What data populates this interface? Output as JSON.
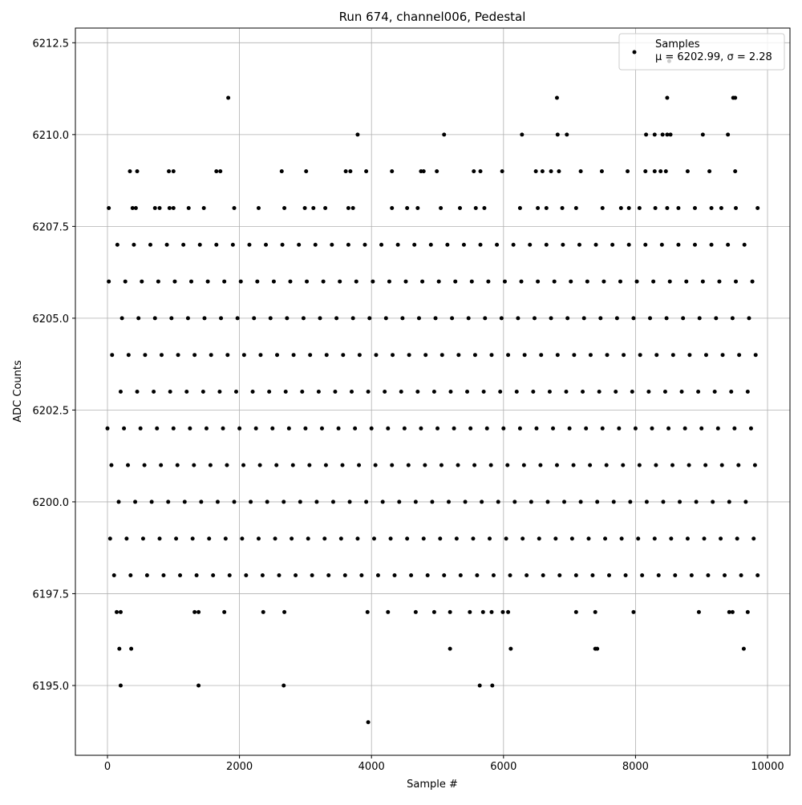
{
  "chart_data": {
    "type": "scatter",
    "title": "Run 674, channel006, Pedestal",
    "x_label": "Sample #",
    "y_label": "ADC Counts",
    "legend_note": "μ = 6202.99, σ = 2.28",
    "legend_loc": "upper right",
    "grid": true,
    "xlim": [
      -486,
      10340
    ],
    "ylim": [
      6193.1,
      6212.9
    ],
    "xticks": [
      0,
      2000,
      4000,
      6000,
      8000,
      10000
    ],
    "yticks": [
      {
        "value": 6195,
        "label": "6195.0"
      },
      {
        "value": 6197.5,
        "label": "6197.5"
      },
      {
        "value": 6200,
        "label": "6200.0"
      },
      {
        "value": 6202.5,
        "label": "6202.5"
      },
      {
        "value": 6205,
        "label": "6205.0"
      },
      {
        "value": 6207.5,
        "label": "6207.5"
      },
      {
        "value": 6210,
        "label": "6210.0"
      },
      {
        "value": 6212.5,
        "label": "6212.5"
      }
    ],
    "x": [
      100,
      350,
      600,
      850,
      1100,
      1350,
      1600,
      1850,
      2100,
      2350,
      2600,
      2850,
      3100,
      3350,
      3600,
      3850,
      4100,
      4350,
      4600,
      4850,
      5100,
      5350,
      5600,
      5850,
      6100,
      6350,
      6600,
      6850,
      7100,
      7350,
      7600,
      7850,
      8100,
      8350,
      8600,
      8850,
      9100,
      9350,
      9600,
      9850,
      40,
      290,
      540,
      790,
      1040,
      1290,
      1540,
      1790,
      2040,
      2290,
      2540,
      2790,
      3040,
      3290,
      3540,
      3790,
      4040,
      4290,
      4540,
      4790,
      5040,
      5290,
      5540,
      5790,
      6040,
      6290,
      6540,
      6790,
      7040,
      7290,
      7540,
      7790,
      8040,
      8290,
      8540,
      8790,
      9040,
      9290,
      9540,
      9790,
      170,
      420,
      670,
      920,
      1170,
      1420,
      1670,
      1920,
      2170,
      2420,
      2670,
      2920,
      3170,
      3420,
      3670,
      3920,
      4170,
      4420,
      4670,
      4920,
      5170,
      5420,
      5670,
      5920,
      6170,
      6420,
      6670,
      6920,
      7170,
      7420,
      7670,
      7920,
      8170,
      8420,
      8670,
      8920,
      9170,
      9420,
      9670,
      60,
      310,
      560,
      810,
      1060,
      1310,
      1560,
      1810,
      2060,
      2310,
      2560,
      2810,
      3060,
      3310,
      3560,
      3810,
      4060,
      4310,
      4560,
      4810,
      5060,
      5310,
      5560,
      5810,
      6060,
      6310,
      6560,
      6810,
      7060,
      7310,
      7560,
      7810,
      8060,
      8310,
      8560,
      8810,
      9060,
      9310,
      9560,
      9810,
      0,
      250,
      500,
      750,
      1000,
      1250,
      1500,
      1750,
      2000,
      2250,
      2500,
      2750,
      3000,
      3250,
      3500,
      3750,
      4000,
      4250,
      4500,
      4750,
      5000,
      5250,
      5500,
      5750,
      6000,
      6250,
      6500,
      6750,
      7000,
      7250,
      7500,
      7750,
      8000,
      8250,
      8500,
      8750,
      9000,
      9250,
      9500,
      9750,
      200,
      450,
      700,
      950,
      1200,
      1450,
      1700,
      1950,
      2200,
      2450,
      2700,
      2950,
      3200,
      3450,
      3700,
      3950,
      4200,
      4450,
      4700,
      4950,
      5200,
      5450,
      5700,
      5950,
      6200,
      6450,
      6700,
      6950,
      7200,
      7450,
      7700,
      7950,
      8200,
      8450,
      8700,
      8950,
      9200,
      9450,
      9700,
      70,
      320,
      570,
      820,
      1070,
      1320,
      1570,
      1820,
      2070,
      2320,
      2570,
      2820,
      3070,
      3320,
      3570,
      3820,
      4070,
      4320,
      4570,
      4820,
      5070,
      5320,
      5570,
      5820,
      6070,
      6320,
      6570,
      6820,
      7070,
      7320,
      7570,
      7820,
      8070,
      8320,
      8570,
      8820,
      9070,
      9320,
      9570,
      9820,
      220,
      470,
      720,
      970,
      1220,
      1470,
      1720,
      1970,
      2220,
      2470,
      2720,
      2970,
      3220,
      3470,
      3720,
      3970,
      4220,
      4470,
      4720,
      4970,
      5220,
      5470,
      5720,
      5970,
      6220,
      6470,
      6720,
      6970,
      7220,
      7470,
      7720,
      7970,
      8220,
      8470,
      8720,
      8970,
      9220,
      9470,
      9720,
      20,
      270,
      520,
      770,
      1020,
      1270,
      1520,
      1770,
      2020,
      2270,
      2520,
      2770,
      3020,
      3270,
      3520,
      3770,
      4020,
      4270,
      4520,
      4770,
      5020,
      5270,
      5520,
      5770,
      6020,
      6270,
      6520,
      6770,
      7020,
      7270,
      7520,
      7770,
      8020,
      8270,
      8520,
      8770,
      9020,
      9270,
      9520,
      9770,
      150,
      400,
      650,
      900,
      1150,
      1400,
      1650,
      1900,
      2150,
      2400,
      2650,
      2900,
      3150,
      3400,
      3650,
      3900,
      4150,
      4400,
      4650,
      4900,
      5150,
      5400,
      5650,
      5900,
      6150,
      6400,
      6650,
      6900,
      7150,
      7400,
      7650,
      7900,
      8150,
      8400,
      8650,
      8900,
      9150,
      9400,
      9650,
      20,
      380,
      430,
      720,
      790,
      940,
      1000,
      1230,
      1460,
      1920,
      2290,
      2680,
      2990,
      3120,
      3300,
      3650,
      3720,
      4310,
      4540,
      4700,
      5050,
      5340,
      5580,
      5710,
      6250,
      6520,
      6650,
      6890,
      7100,
      7500,
      7780,
      7900,
      8060,
      8300,
      8480,
      8650,
      8900,
      9150,
      9300,
      9520,
      9850,
      340,
      450,
      930,
      1000,
      1650,
      1710,
      2640,
      3010,
      3610,
      3680,
      3920,
      4310,
      4750,
      4790,
      4990,
      5550,
      5650,
      5980,
      6490,
      6590,
      6720,
      6840,
      7170,
      7490,
      7880,
      8150,
      8290,
      8380,
      8460,
      8790,
      9120,
      9510,
      3790,
      5100,
      6280,
      6820,
      6960,
      8160,
      8290,
      8410,
      8480,
      8530,
      9020,
      9400,
      1830,
      6810,
      8480,
      9480,
      9510,
      8510,
      140,
      200,
      1320,
      1380,
      1770,
      2360,
      2680,
      3940,
      4250,
      4670,
      4950,
      5190,
      5490,
      5690,
      5820,
      5990,
      6070,
      7100,
      7390,
      7970,
      8960,
      9420,
      9470,
      9700,
      180,
      360,
      5190,
      6110,
      7390,
      7420,
      9640,
      200,
      1380,
      2670,
      5640,
      5830,
      3950
    ],
    "series": [
      {
        "name": "Samples",
        "color": "#000000",
        "values": [
          6198,
          6198,
          6198,
          6198,
          6198,
          6198,
          6198,
          6198,
          6198,
          6198,
          6198,
          6198,
          6198,
          6198,
          6198,
          6198,
          6198,
          6198,
          6198,
          6198,
          6198,
          6198,
          6198,
          6198,
          6198,
          6198,
          6198,
          6198,
          6198,
          6198,
          6198,
          6198,
          6198,
          6198,
          6198,
          6198,
          6198,
          6198,
          6198,
          6198,
          6199,
          6199,
          6199,
          6199,
          6199,
          6199,
          6199,
          6199,
          6199,
          6199,
          6199,
          6199,
          6199,
          6199,
          6199,
          6199,
          6199,
          6199,
          6199,
          6199,
          6199,
          6199,
          6199,
          6199,
          6199,
          6199,
          6199,
          6199,
          6199,
          6199,
          6199,
          6199,
          6199,
          6199,
          6199,
          6199,
          6199,
          6199,
          6199,
          6199,
          6200,
          6200,
          6200,
          6200,
          6200,
          6200,
          6200,
          6200,
          6200,
          6200,
          6200,
          6200,
          6200,
          6200,
          6200,
          6200,
          6200,
          6200,
          6200,
          6200,
          6200,
          6200,
          6200,
          6200,
          6200,
          6200,
          6200,
          6200,
          6200,
          6200,
          6200,
          6200,
          6200,
          6200,
          6200,
          6200,
          6200,
          6200,
          6200,
          6201,
          6201,
          6201,
          6201,
          6201,
          6201,
          6201,
          6201,
          6201,
          6201,
          6201,
          6201,
          6201,
          6201,
          6201,
          6201,
          6201,
          6201,
          6201,
          6201,
          6201,
          6201,
          6201,
          6201,
          6201,
          6201,
          6201,
          6201,
          6201,
          6201,
          6201,
          6201,
          6201,
          6201,
          6201,
          6201,
          6201,
          6201,
          6201,
          6201,
          6202,
          6202,
          6202,
          6202,
          6202,
          6202,
          6202,
          6202,
          6202,
          6202,
          6202,
          6202,
          6202,
          6202,
          6202,
          6202,
          6202,
          6202,
          6202,
          6202,
          6202,
          6202,
          6202,
          6202,
          6202,
          6202,
          6202,
          6202,
          6202,
          6202,
          6202,
          6202,
          6202,
          6202,
          6202,
          6202,
          6202,
          6202,
          6202,
          6202,
          6203,
          6203,
          6203,
          6203,
          6203,
          6203,
          6203,
          6203,
          6203,
          6203,
          6203,
          6203,
          6203,
          6203,
          6203,
          6203,
          6203,
          6203,
          6203,
          6203,
          6203,
          6203,
          6203,
          6203,
          6203,
          6203,
          6203,
          6203,
          6203,
          6203,
          6203,
          6203,
          6203,
          6203,
          6203,
          6203,
          6203,
          6203,
          6203,
          6204,
          6204,
          6204,
          6204,
          6204,
          6204,
          6204,
          6204,
          6204,
          6204,
          6204,
          6204,
          6204,
          6204,
          6204,
          6204,
          6204,
          6204,
          6204,
          6204,
          6204,
          6204,
          6204,
          6204,
          6204,
          6204,
          6204,
          6204,
          6204,
          6204,
          6204,
          6204,
          6204,
          6204,
          6204,
          6204,
          6204,
          6204,
          6204,
          6204,
          6205,
          6205,
          6205,
          6205,
          6205,
          6205,
          6205,
          6205,
          6205,
          6205,
          6205,
          6205,
          6205,
          6205,
          6205,
          6205,
          6205,
          6205,
          6205,
          6205,
          6205,
          6205,
          6205,
          6205,
          6205,
          6205,
          6205,
          6205,
          6205,
          6205,
          6205,
          6205,
          6205,
          6205,
          6205,
          6205,
          6205,
          6205,
          6205,
          6206,
          6206,
          6206,
          6206,
          6206,
          6206,
          6206,
          6206,
          6206,
          6206,
          6206,
          6206,
          6206,
          6206,
          6206,
          6206,
          6206,
          6206,
          6206,
          6206,
          6206,
          6206,
          6206,
          6206,
          6206,
          6206,
          6206,
          6206,
          6206,
          6206,
          6206,
          6206,
          6206,
          6206,
          6206,
          6206,
          6206,
          6206,
          6206,
          6206,
          6207,
          6207,
          6207,
          6207,
          6207,
          6207,
          6207,
          6207,
          6207,
          6207,
          6207,
          6207,
          6207,
          6207,
          6207,
          6207,
          6207,
          6207,
          6207,
          6207,
          6207,
          6207,
          6207,
          6207,
          6207,
          6207,
          6207,
          6207,
          6207,
          6207,
          6207,
          6207,
          6207,
          6207,
          6207,
          6207,
          6207,
          6207,
          6207,
          6208,
          6208,
          6208,
          6208,
          6208,
          6208,
          6208,
          6208,
          6208,
          6208,
          6208,
          6208,
          6208,
          6208,
          6208,
          6208,
          6208,
          6208,
          6208,
          6208,
          6208,
          6208,
          6208,
          6208,
          6208,
          6208,
          6208,
          6208,
          6208,
          6208,
          6208,
          6208,
          6208,
          6208,
          6208,
          6208,
          6208,
          6208,
          6208,
          6208,
          6208,
          6209,
          6209,
          6209,
          6209,
          6209,
          6209,
          6209,
          6209,
          6209,
          6209,
          6209,
          6209,
          6209,
          6209,
          6209,
          6209,
          6209,
          6209,
          6209,
          6209,
          6209,
          6209,
          6209,
          6209,
          6209,
          6209,
          6209,
          6209,
          6209,
          6209,
          6209,
          6209,
          6210,
          6210,
          6210,
          6210,
          6210,
          6210,
          6210,
          6210,
          6210,
          6210,
          6210,
          6210,
          6211,
          6211,
          6211,
          6211,
          6211,
          6212,
          6197,
          6197,
          6197,
          6197,
          6197,
          6197,
          6197,
          6197,
          6197,
          6197,
          6197,
          6197,
          6197,
          6197,
          6197,
          6197,
          6197,
          6197,
          6197,
          6197,
          6197,
          6197,
          6197,
          6197,
          6196,
          6196,
          6196,
          6196,
          6196,
          6196,
          6196,
          6195,
          6195,
          6195,
          6195,
          6195,
          6194
        ]
      }
    ]
  }
}
